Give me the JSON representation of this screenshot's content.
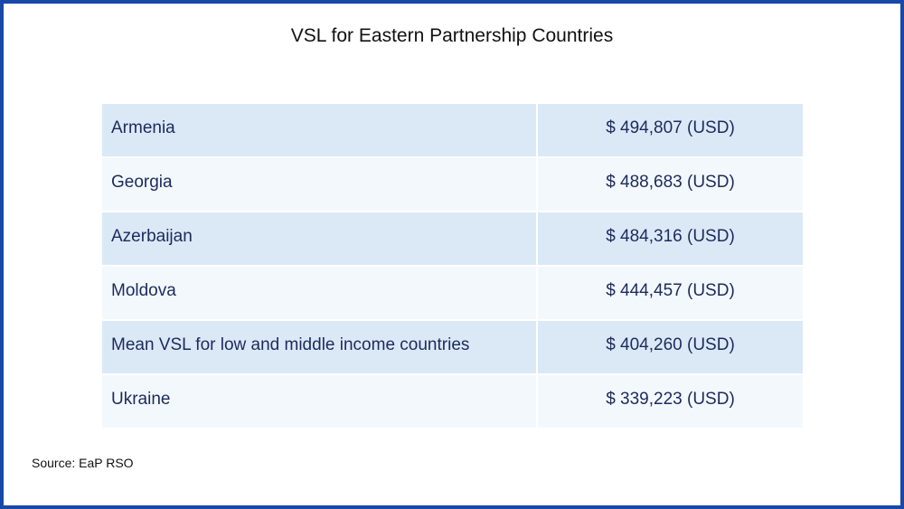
{
  "header": {
    "title": "VSL for Eastern Partnership Countries"
  },
  "table": {
    "rows": [
      [
        "Armenia",
        "$ 494,807 (USD)"
      ],
      [
        "Georgia",
        "$ 488,683 (USD)"
      ],
      [
        "Azerbaijan",
        "$ 484,316 (USD)"
      ],
      [
        "Moldova",
        "$ 444,457 (USD)"
      ],
      [
        "Mean VSL for low and middle income countries",
        "$ 404,260 (USD)"
      ],
      [
        "Ukraine",
        "$ 339,223 (USD)"
      ]
    ]
  },
  "footer": {
    "source": "Source: EaP RSO"
  }
}
